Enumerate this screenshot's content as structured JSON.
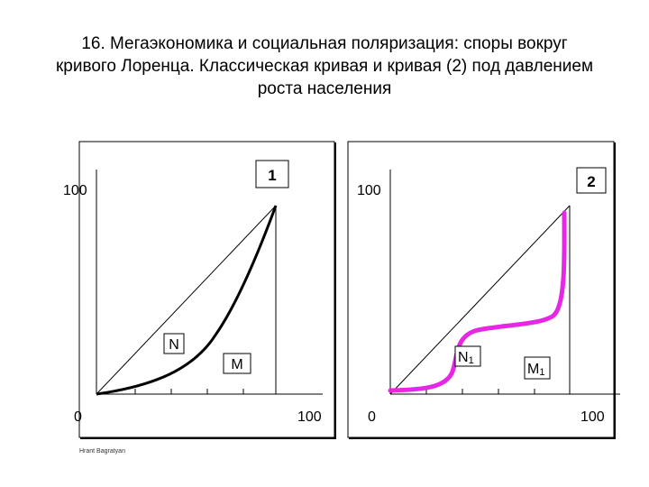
{
  "title": {
    "line1": "16. Мегаэкономика и социальная поляризация: споры вокруг",
    "line2": "кривого Лоренца. Классическая кривая и кривая (2) под давлением",
    "line3": "роста населения"
  },
  "left_panel": {
    "curve_label": "1",
    "y_max_label": "100",
    "origin_label": "0",
    "x_max_label": "100",
    "point_n": "N",
    "point_m": "M",
    "curve_color": "#000000"
  },
  "right_panel": {
    "curve_label": "2",
    "y_max_label": "100",
    "origin_label": "0",
    "x_max_label": "100",
    "point_n": "N",
    "point_n_sub": "1",
    "point_m": "M",
    "point_m_sub": "1",
    "curve_color": "#e627e6"
  },
  "footer": "Hrant Bagratyan"
}
